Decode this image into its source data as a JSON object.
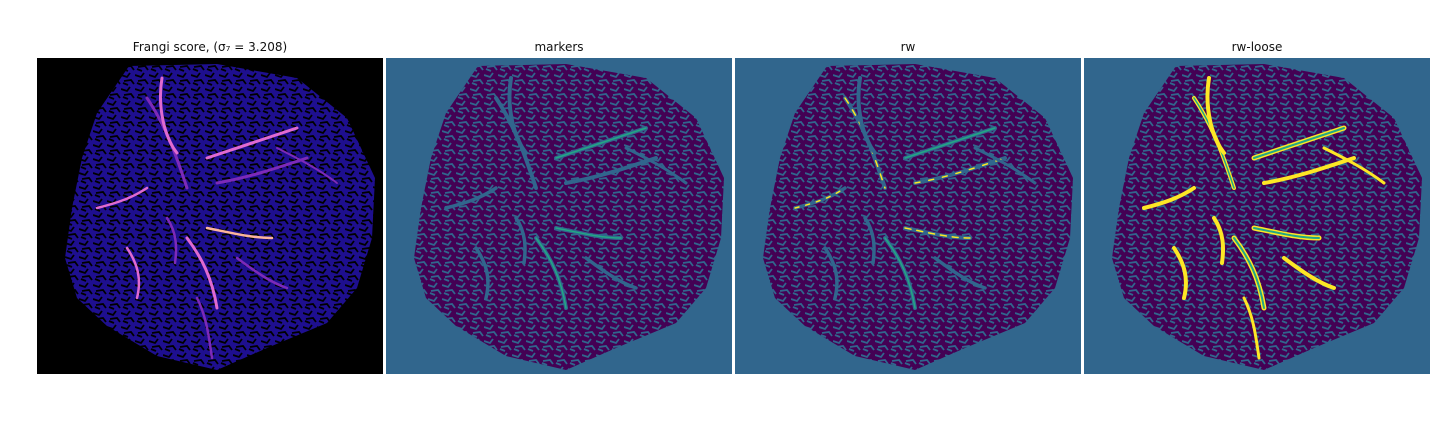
{
  "figure": {
    "panels": [
      {
        "title": "Frangi score, (σ₇ = 3.208)",
        "colormap": "magma",
        "background": "#000000"
      },
      {
        "title": "markers",
        "colormap": "viridis",
        "background": "#31668d"
      },
      {
        "title": "rw",
        "colormap": "viridis",
        "background": "#31668d"
      },
      {
        "title": "rw-loose",
        "colormap": "viridis",
        "background": "#31668d"
      }
    ]
  },
  "colors": {
    "viridis_dark": "#440154",
    "viridis_blue": "#31668d",
    "viridis_teal": "#22a884",
    "viridis_yellow": "#fde725",
    "magma_black": "#000000",
    "magma_blue": "#1e0f8f",
    "magma_purple": "#7d2ab8",
    "magma_pink": "#e06ad0",
    "magma_peach": "#fcb59a"
  }
}
